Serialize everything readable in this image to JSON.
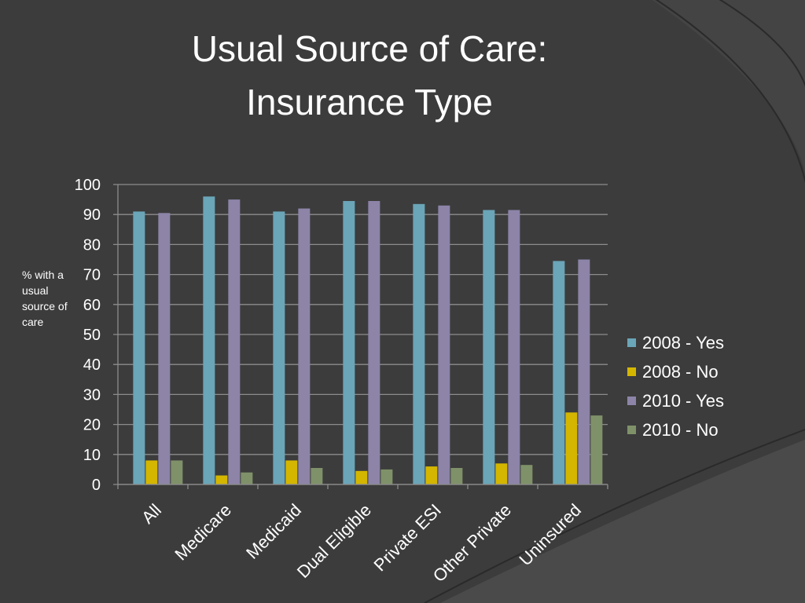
{
  "slide": {
    "title_line1": "Usual Source of Care:",
    "title_line2": "Insurance Type"
  },
  "chart_data": {
    "type": "bar",
    "title": "",
    "ylabel": "% with a usual source of care",
    "ylim": [
      0,
      100
    ],
    "yticks": [
      0,
      10,
      20,
      30,
      40,
      50,
      60,
      70,
      80,
      90,
      100
    ],
    "grid": true,
    "legend_position": "right",
    "categories": [
      "All",
      "Medicare",
      "Medicaid",
      "Dual Eligible",
      "Private ESI",
      "Other Private",
      "Uninsured"
    ],
    "series": [
      {
        "name": "2008 - Yes",
        "color": "#6aa5b8",
        "values": [
          91,
          96,
          91,
          94.5,
          93.5,
          91.5,
          74.5
        ]
      },
      {
        "name": "2008 - No",
        "color": "#d4b600",
        "values": [
          8,
          3,
          8,
          4.5,
          6,
          7,
          24
        ]
      },
      {
        "name": "2010 - Yes",
        "color": "#8d84a8",
        "values": [
          90.5,
          95,
          92,
          94.5,
          93,
          91.5,
          75
        ]
      },
      {
        "name": "2010 - No",
        "color": "#7f9169",
        "values": [
          8,
          4,
          5.5,
          5,
          5.5,
          6.5,
          23
        ]
      }
    ]
  }
}
